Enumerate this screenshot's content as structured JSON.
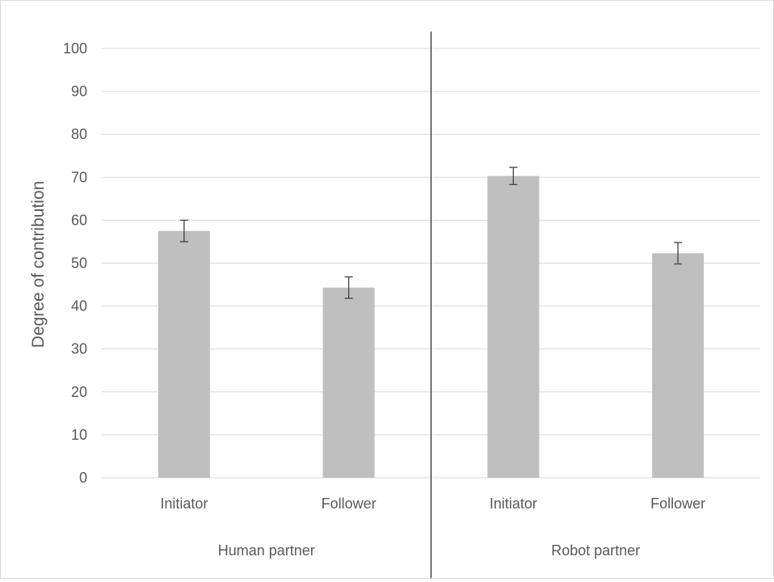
{
  "chart_data": {
    "type": "bar",
    "title": "",
    "xlabel": "",
    "ylabel": "Degree of contribution",
    "ylim": [
      0,
      100
    ],
    "yticks": [
      0,
      10,
      20,
      30,
      40,
      50,
      60,
      70,
      80,
      90,
      100
    ],
    "grid": true,
    "legend": "none",
    "bar_color": "#bfbfbf",
    "error_bar_color": "#404040",
    "grid_color": "#d9d9d9",
    "divider_color": "#000000",
    "groups": [
      {
        "label": "Human partner",
        "categories": [
          {
            "label": "Initiator",
            "value": 57.5,
            "error": 2.5
          },
          {
            "label": "Follower",
            "value": 44.3,
            "error": 2.5
          }
        ]
      },
      {
        "label": "Robot partner",
        "categories": [
          {
            "label": "Initiator",
            "value": 70.3,
            "error": 2.0
          },
          {
            "label": "Follower",
            "value": 52.3,
            "error": 2.5
          }
        ]
      }
    ]
  }
}
